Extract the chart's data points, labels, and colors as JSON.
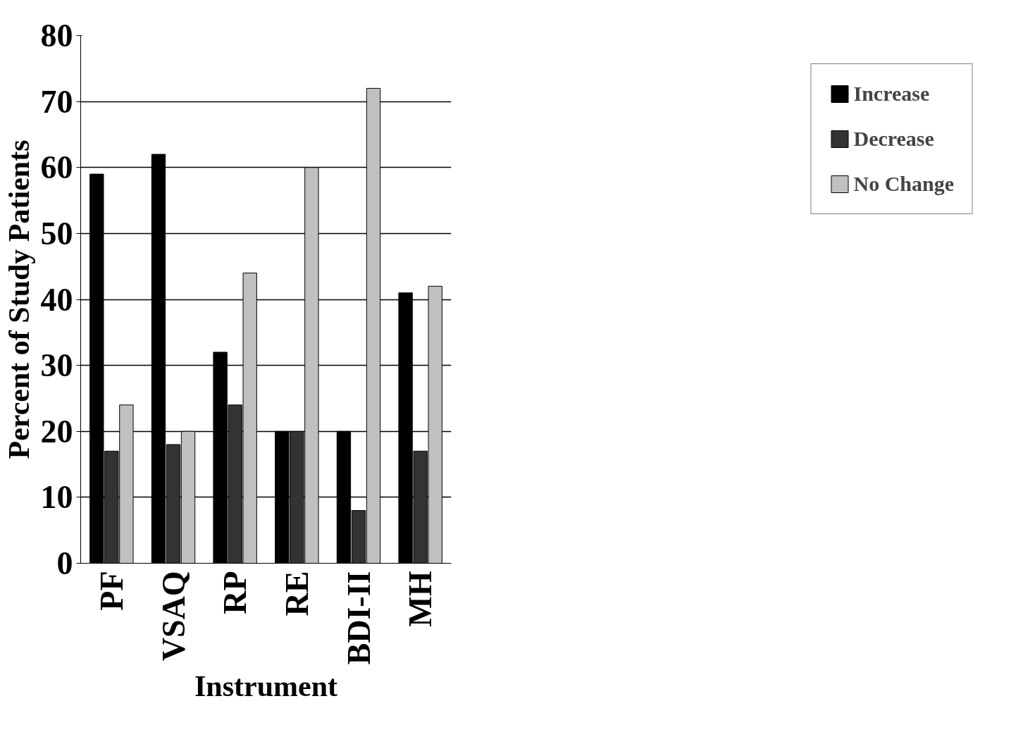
{
  "chart_data": {
    "type": "bar",
    "xlabel": "Instrument",
    "ylabel": "Percent of Study Patients",
    "categories": [
      "PF",
      "VSAQ",
      "RP",
      "RE",
      "BDI-II",
      "MH"
    ],
    "series": [
      {
        "name": "Increase",
        "color": "#000000",
        "values": [
          59,
          62,
          32,
          20,
          20,
          41
        ]
      },
      {
        "name": "Decrease",
        "color": "#333333",
        "values": [
          17,
          18,
          24,
          20,
          8,
          17
        ]
      },
      {
        "name": "No Change",
        "color": "#c0c0c0",
        "values": [
          24,
          20,
          44,
          60,
          72,
          42
        ]
      }
    ],
    "ylim": [
      0,
      80
    ],
    "yticks": [
      0,
      10,
      20,
      30,
      40,
      50,
      60,
      70,
      80
    ],
    "grid": "y",
    "legend": "right"
  }
}
